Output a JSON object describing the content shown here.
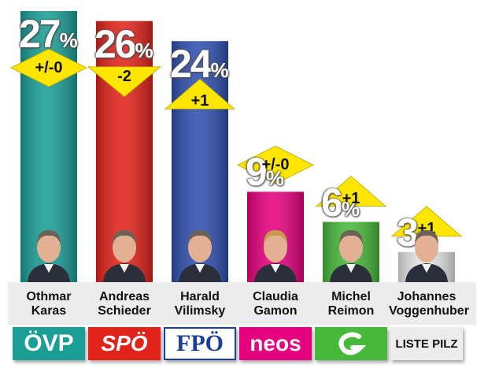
{
  "chart_data": {
    "type": "bar",
    "unit": "%",
    "ylim": [
      0,
      30
    ],
    "categories": [
      "Othmar Karas",
      "Andreas Schieder",
      "Harald Vilimsky",
      "Claudia Gamon",
      "Michel Reimon",
      "Johannes Voggenhuber"
    ],
    "candidates": [
      {
        "first": "Othmar",
        "last": "Karas",
        "party": "ÖVP",
        "value": 27,
        "change": "+/-0",
        "change_dir": "none",
        "color": "#1a9e96"
      },
      {
        "first": "Andreas",
        "last": "Schieder",
        "party": "SPÖ",
        "value": 26,
        "change": "-2",
        "change_dir": "down",
        "color": "#e2231a"
      },
      {
        "first": "Harald",
        "last": "Vilimsky",
        "party": "FPÖ",
        "value": 24,
        "change": "+1",
        "change_dir": "up",
        "color": "#2f4fb0"
      },
      {
        "first": "Claudia",
        "last": "Gamon",
        "party": "neos",
        "value": 9,
        "change": "+/-0",
        "change_dir": "none",
        "color": "#e5007d"
      },
      {
        "first": "Michel",
        "last": "Reimon",
        "party": "",
        "value": 6,
        "change": "+1",
        "change_dir": "up",
        "color": "#47b93a"
      },
      {
        "first": "Johannes",
        "last": "Voggenhuber",
        "party": "LISTE PILZ",
        "value": 3,
        "change": "+1",
        "change_dir": "up",
        "color": "#e8e8e8"
      }
    ]
  },
  "colors": {
    "arrow": "#ffe600",
    "name_band": "#ececec"
  }
}
